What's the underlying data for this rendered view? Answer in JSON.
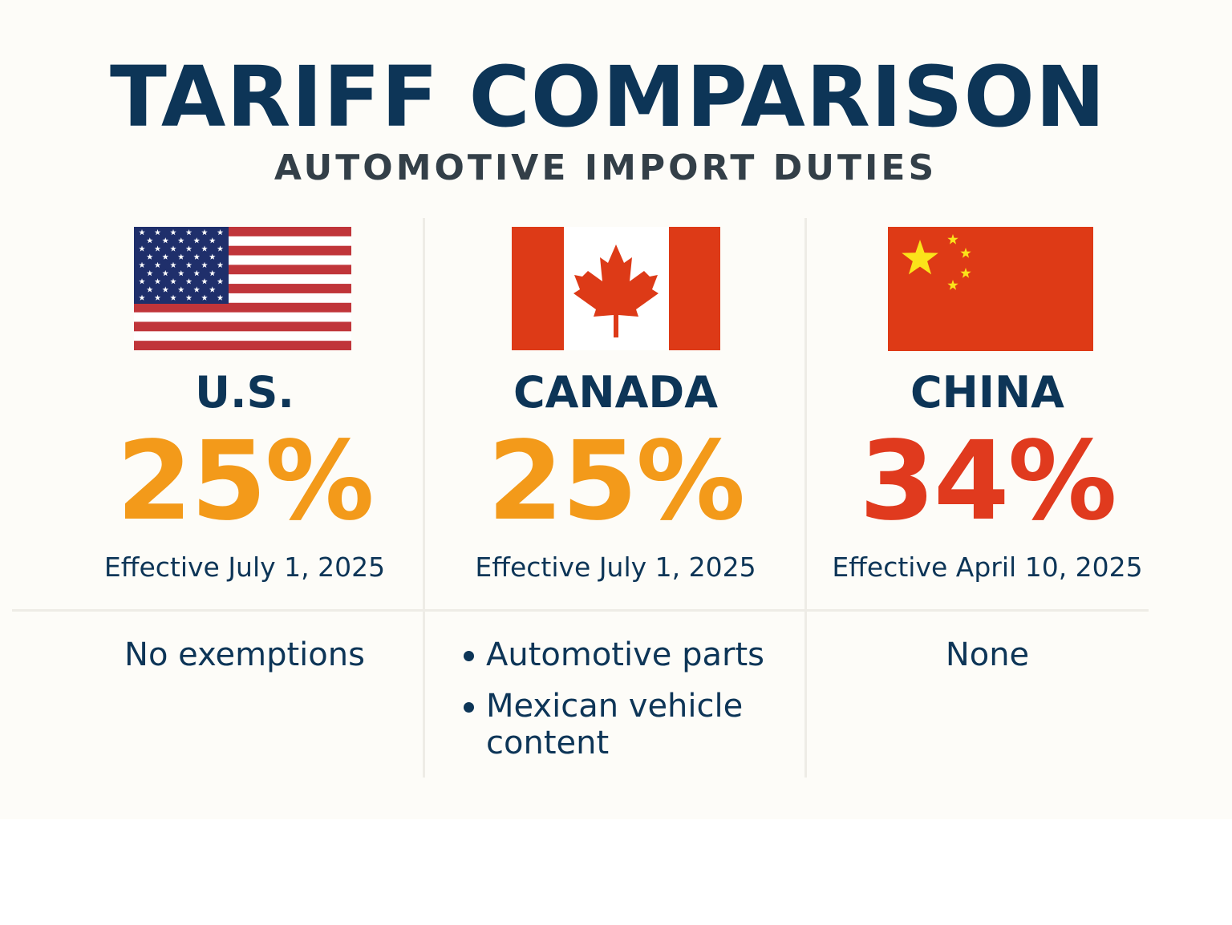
{
  "title": "TARIFF COMPARISON",
  "subtitle": "AUTOMOTIVE IMPORT DUTIES",
  "colors": {
    "navy": "#0d3557",
    "orange": "#f39a1a",
    "red": "#e03a1e"
  },
  "countries": [
    {
      "name": "U.S.",
      "flag": "us-flag",
      "rate": "25%",
      "rate_color": "#f39a1a",
      "effective": "Effective July 1, 2025",
      "exemptions": "No exemptions"
    },
    {
      "name": "CANADA",
      "flag": "canada-flag",
      "rate": "25%",
      "rate_color": "#f39a1a",
      "effective": "Effective July 1, 2025",
      "exemptions_list": [
        "Automotive parts",
        "Mexican vehicle content"
      ]
    },
    {
      "name": "CHINA",
      "flag": "china-flag",
      "rate": "34%",
      "rate_color": "#e03a1e",
      "effective": "Effective April 10, 2025",
      "exemptions": "None"
    }
  ]
}
